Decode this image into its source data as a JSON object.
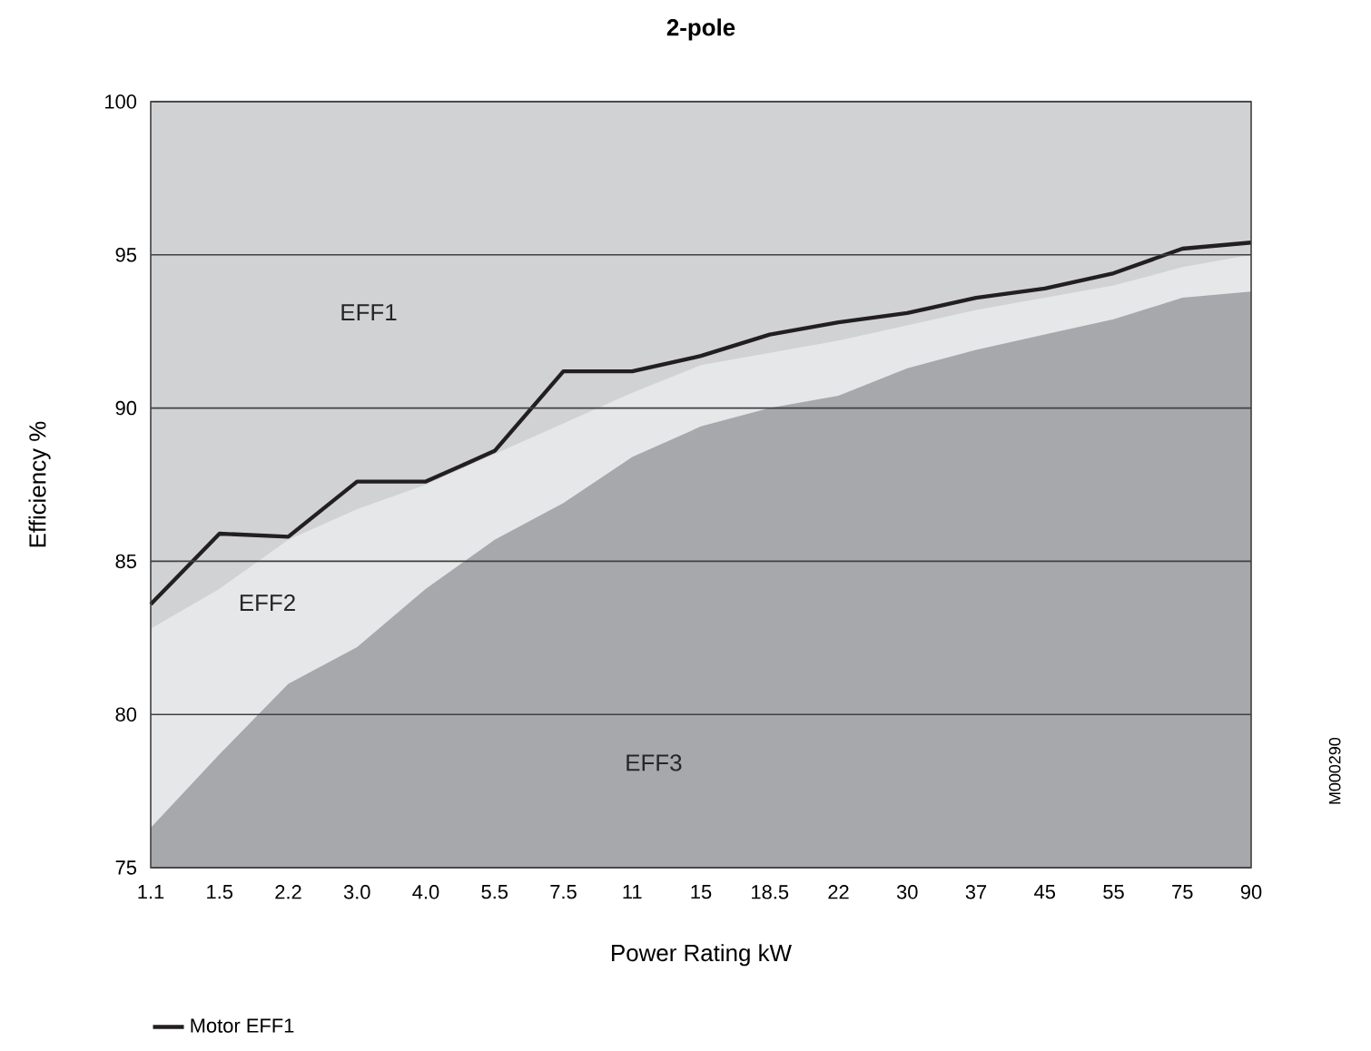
{
  "chart_data": {
    "type": "area",
    "title": "2-pole",
    "xlabel": "Power Rating kW",
    "ylabel": "Efficiency %",
    "categories": [
      "1.1",
      "1.5",
      "2.2",
      "3.0",
      "4.0",
      "5.5",
      "7.5",
      "11",
      "15",
      "18.5",
      "22",
      "30",
      "37",
      "45",
      "55",
      "75",
      "90"
    ],
    "series": [
      {
        "color": "#e6e7e8",
        "values": [
          82.8,
          84.1,
          85.7,
          86.7,
          87.5,
          88.5,
          89.5,
          90.5,
          91.4,
          91.8,
          92.2,
          92.7,
          93.2,
          93.6,
          94.0,
          94.6,
          95.0
        ]
      },
      {
        "color": "#a7a8ab",
        "values": [
          76.3,
          78.7,
          81.0,
          82.2,
          84.1,
          85.7,
          86.9,
          88.4,
          89.4,
          90.0,
          90.4,
          91.3,
          91.9,
          92.4,
          92.9,
          93.6,
          93.8
        ]
      },
      {
        "type": "line",
        "name": "Motor EFF1",
        "color": "#231f20",
        "values": [
          83.6,
          85.9,
          85.8,
          87.6,
          87.6,
          88.6,
          91.2,
          91.2,
          91.7,
          92.4,
          92.8,
          93.1,
          93.6,
          93.9,
          94.4,
          95.2,
          95.4
        ]
      }
    ],
    "ylim": [
      75,
      100
    ],
    "yticks": [
      75,
      80,
      85,
      90,
      95,
      100
    ],
    "grid": "y",
    "legend": "bottom left",
    "annotations": [
      "EFF1",
      "EFF2",
      "EFF3",
      "M000290"
    ]
  }
}
